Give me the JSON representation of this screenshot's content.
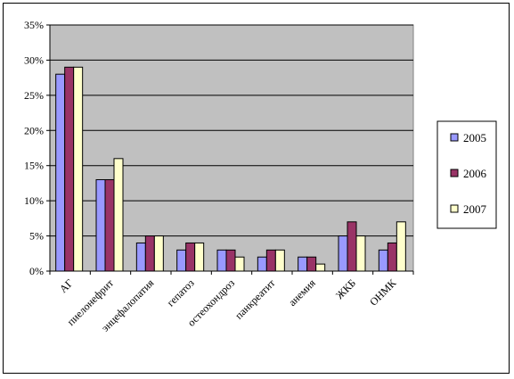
{
  "chart_data": {
    "type": "bar",
    "title": "",
    "xlabel": "",
    "ylabel": "",
    "categories": [
      "АГ",
      "пиелонефрит",
      "энцефалопатия",
      "гепатоз",
      "остеохондроз",
      "панкреатит",
      "анемия",
      "ЖКБ",
      "ОНМК"
    ],
    "series": [
      {
        "name": "2005",
        "color": "#9999FF",
        "values": [
          28,
          13,
          4,
          3,
          3,
          2,
          2,
          5,
          3
        ]
      },
      {
        "name": "2006",
        "color": "#993366",
        "values": [
          29,
          13,
          5,
          4,
          3,
          3,
          2,
          7,
          4
        ]
      },
      {
        "name": "2007",
        "color": "#FFFFCC",
        "values": [
          29,
          16,
          5,
          4,
          2,
          3,
          1,
          5,
          7
        ]
      }
    ],
    "ylim": [
      0,
      35
    ],
    "yticks": [
      0,
      5,
      10,
      15,
      20,
      25,
      30,
      35
    ],
    "ytick_labels": [
      "0%",
      "5%",
      "10%",
      "15%",
      "20%",
      "25%",
      "30%",
      "35%"
    ],
    "grid": true,
    "plot_background": "#C0C0C0",
    "legend_position": "right"
  }
}
